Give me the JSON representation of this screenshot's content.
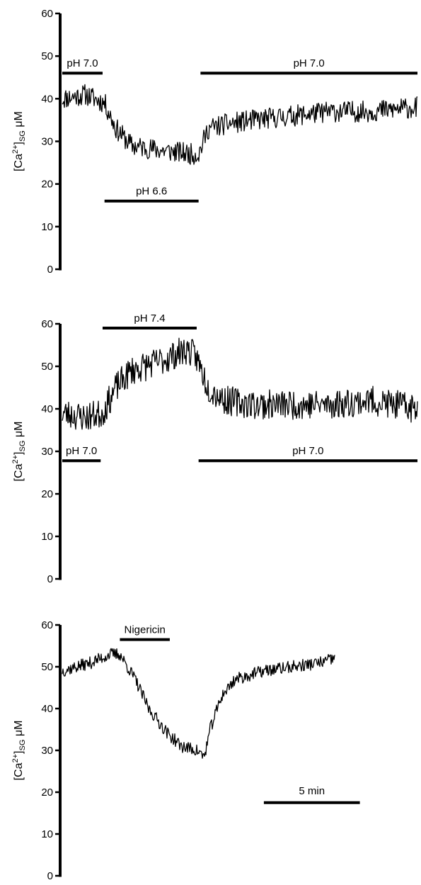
{
  "chart_data": [
    {
      "type": "line",
      "ylabel": {
        "pre": "[Ca",
        "sup": "2+",
        "post": "]",
        "sub": "SG",
        "unit": " μM"
      },
      "ylim": [
        0,
        60
      ],
      "yticks": [
        0,
        10,
        20,
        30,
        40,
        50,
        60
      ],
      "xlim_min": [
        0,
        18.5
      ],
      "trace": {
        "knots_min": [
          [
            0,
            40
          ],
          [
            1.2,
            41
          ],
          [
            2.2,
            39
          ],
          [
            2.8,
            33
          ],
          [
            3.6,
            29
          ],
          [
            5.0,
            28
          ],
          [
            6.8,
            27
          ],
          [
            7.1,
            27
          ],
          [
            7.6,
            33
          ],
          [
            8.5,
            34
          ],
          [
            10,
            35
          ],
          [
            12,
            36
          ],
          [
            14,
            37
          ],
          [
            16,
            37
          ],
          [
            18.5,
            38
          ]
        ],
        "noise_uM": 2.5,
        "seed": 11
      },
      "conditions": [
        {
          "label": "pH 7.0",
          "start_min": 0,
          "end_min": 2.1,
          "level_uM": 46,
          "label_pos": "above"
        },
        {
          "label": "pH 7.0",
          "start_min": 7.2,
          "end_min": 18.5,
          "level_uM": 46,
          "label_pos": "above"
        },
        {
          "label": "pH 6.6",
          "start_min": 2.2,
          "end_min": 7.1,
          "level_uM": 16,
          "label_pos": "above"
        }
      ]
    },
    {
      "type": "line",
      "ylabel": {
        "pre": "[Ca",
        "sup": "2+",
        "post": "]",
        "sub": "SG",
        "unit": " μM"
      },
      "ylim": [
        0,
        60
      ],
      "yticks": [
        0,
        10,
        20,
        30,
        40,
        50,
        60
      ],
      "xlim_min": [
        0,
        18.5
      ],
      "trace": {
        "knots_min": [
          [
            0,
            39
          ],
          [
            1.2,
            38
          ],
          [
            2.1,
            39
          ],
          [
            2.8,
            45
          ],
          [
            3.6,
            49
          ],
          [
            5.0,
            51
          ],
          [
            6.5,
            54
          ],
          [
            7.0,
            52
          ],
          [
            7.6,
            45
          ],
          [
            8.5,
            42
          ],
          [
            10,
            41
          ],
          [
            12,
            41
          ],
          [
            14,
            41
          ],
          [
            16,
            42
          ],
          [
            18.5,
            40
          ]
        ],
        "noise_uM": 3.5,
        "seed": 23
      },
      "conditions": [
        {
          "label": "pH 7.4",
          "start_min": 2.1,
          "end_min": 7.0,
          "level_uM": 59,
          "label_pos": "above"
        },
        {
          "label": "pH 7.0",
          "start_min": 0,
          "end_min": 2.0,
          "level_uM": 27.8,
          "label_pos": "above"
        },
        {
          "label": "pH 7.0",
          "start_min": 7.1,
          "end_min": 18.5,
          "level_uM": 27.8,
          "label_pos": "above"
        }
      ]
    },
    {
      "type": "line",
      "ylabel": {
        "pre": "[Ca",
        "sup": "2+",
        "post": "]",
        "sub": "SG",
        "unit": " μM"
      },
      "ylim": [
        0,
        60
      ],
      "yticks": [
        0,
        10,
        20,
        30,
        40,
        50,
        60
      ],
      "xlim_min": [
        0,
        18.5
      ],
      "trace": {
        "knots_min": [
          [
            0,
            49
          ],
          [
            1.5,
            51
          ],
          [
            2.5,
            53
          ],
          [
            3.0,
            53
          ],
          [
            3.8,
            47
          ],
          [
            4.5,
            40
          ],
          [
            5.5,
            34
          ],
          [
            6.2,
            31
          ],
          [
            7.0,
            30
          ],
          [
            7.4,
            28.5
          ],
          [
            7.7,
            35
          ],
          [
            8.3,
            43
          ],
          [
            9,
            47
          ],
          [
            10.5,
            49
          ],
          [
            12,
            50
          ],
          [
            13.5,
            51
          ],
          [
            14.2,
            52
          ]
        ],
        "noise_uM": 1.5,
        "seed": 37
      },
      "conditions": [
        {
          "label": "Nigericin",
          "start_min": 3.0,
          "end_min": 5.6,
          "level_uM": 56.5,
          "label_pos": "above"
        }
      ],
      "scale_bar": {
        "label": "5 min",
        "length_min": 5,
        "start_min": 10.5,
        "level_uM": 17.5
      }
    }
  ]
}
